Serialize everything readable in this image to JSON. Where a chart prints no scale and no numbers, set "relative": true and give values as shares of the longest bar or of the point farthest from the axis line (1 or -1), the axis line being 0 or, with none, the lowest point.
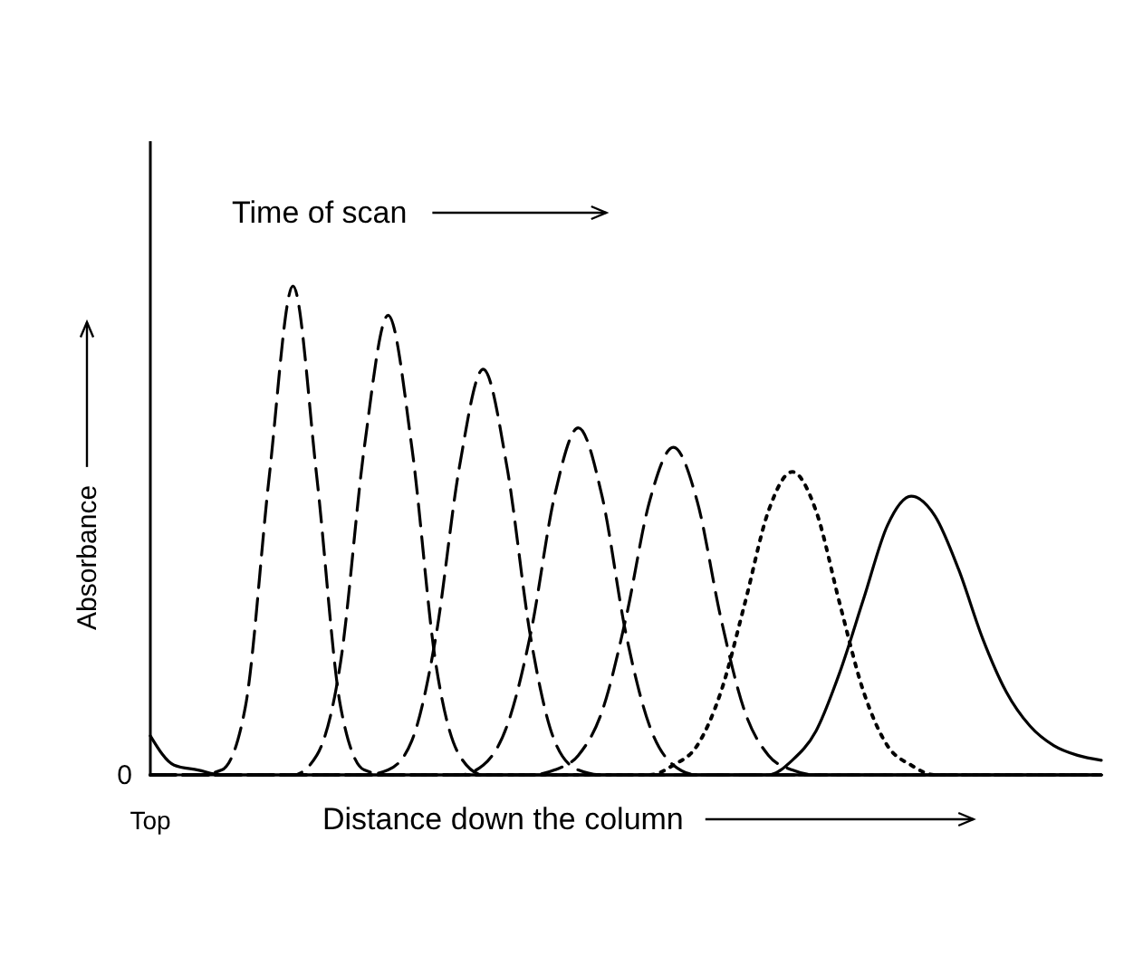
{
  "chart_data": {
    "type": "line",
    "relative": true,
    "xlabel": "Distance down the column",
    "ylabel": "Absorbance",
    "annotations": [
      "Time of scan",
      "0",
      "Top"
    ],
    "categories": [
      null,
      null,
      null,
      null,
      null,
      null,
      null,
      null,
      null,
      null,
      null,
      null,
      null,
      null,
      null,
      null,
      null,
      null,
      null,
      null,
      null,
      null,
      null,
      null,
      null,
      null,
      null,
      null,
      null,
      null,
      null,
      null,
      null,
      null,
      null,
      null,
      null,
      null,
      null,
      null,
      null
    ],
    "series": [
      {
        "color": "#000000",
        "line_style": "dashed",
        "values": [
          0,
          0,
          0,
          0.01,
          0.14,
          0.61,
          1,
          0.61,
          0.14,
          0.01,
          0,
          0,
          0,
          0,
          0,
          0,
          0,
          0,
          0,
          0,
          0,
          0,
          0,
          0,
          0,
          0,
          0,
          0,
          0,
          0,
          0,
          0,
          0,
          0,
          0,
          0,
          0,
          0,
          0,
          0,
          0
        ]
      },
      {
        "color": "#000000",
        "line_style": "dashed",
        "values": [
          0,
          0,
          0,
          0,
          0,
          0,
          0,
          0.04,
          0.23,
          0.67,
          0.94,
          0.67,
          0.23,
          0.04,
          0,
          0,
          0,
          0,
          0,
          0,
          0,
          0,
          0,
          0,
          0,
          0,
          0,
          0,
          0,
          0,
          0,
          0,
          0,
          0,
          0,
          0,
          0,
          0,
          0,
          0,
          0
        ]
      },
      {
        "color": "#000000",
        "line_style": "dashed",
        "values": [
          0,
          0,
          0,
          0,
          0,
          0,
          0,
          0,
          0,
          0,
          0.01,
          0.07,
          0.28,
          0.63,
          0.83,
          0.63,
          0.28,
          0.07,
          0.01,
          0,
          0,
          0,
          0,
          0,
          0,
          0,
          0,
          0,
          0,
          0,
          0,
          0,
          0,
          0,
          0,
          0,
          0,
          0,
          0,
          0,
          0
        ]
      },
      {
        "color": "#000000",
        "line_style": "dashed",
        "values": [
          0,
          0,
          0,
          0,
          0,
          0,
          0,
          0,
          0,
          0,
          0,
          0,
          0,
          0,
          0.02,
          0.1,
          0.29,
          0.57,
          0.71,
          0.57,
          0.29,
          0.1,
          0.02,
          0,
          0,
          0,
          0,
          0,
          0,
          0,
          0,
          0,
          0,
          0,
          0,
          0,
          0,
          0,
          0,
          0,
          0
        ]
      },
      {
        "color": "#000000",
        "line_style": "dashed",
        "values": [
          0,
          0,
          0,
          0,
          0,
          0,
          0,
          0,
          0,
          0,
          0,
          0,
          0,
          0,
          0,
          0,
          0,
          0.01,
          0.04,
          0.13,
          0.32,
          0.56,
          0.67,
          0.56,
          0.32,
          0.13,
          0.04,
          0.01,
          0,
          0,
          0,
          0,
          0,
          0,
          0,
          0,
          0,
          0,
          0,
          0,
          0
        ]
      },
      {
        "color": "#000000",
        "line_style": "dotted",
        "values": [
          0,
          0,
          0,
          0,
          0,
          0,
          0,
          0,
          0,
          0,
          0,
          0,
          0,
          0,
          0,
          0,
          0,
          0,
          0,
          0,
          0,
          0,
          0.02,
          0.06,
          0.17,
          0.35,
          0.54,
          0.62,
          0.54,
          0.35,
          0.17,
          0.06,
          0.02,
          0,
          0,
          0,
          0,
          0,
          0,
          0,
          0
        ]
      },
      {
        "color": "#000000",
        "line_style": "solid",
        "values": [
          0.08,
          0.02,
          0.01,
          0,
          0,
          0,
          0,
          0,
          0,
          0,
          0,
          0,
          0,
          0,
          0,
          0,
          0,
          0,
          0,
          0,
          0,
          0,
          0,
          0,
          0,
          0,
          0,
          0.03,
          0.09,
          0.21,
          0.36,
          0.51,
          0.57,
          0.53,
          0.42,
          0.28,
          0.17,
          0.1,
          0.06,
          0.04,
          0.03
        ]
      }
    ]
  }
}
